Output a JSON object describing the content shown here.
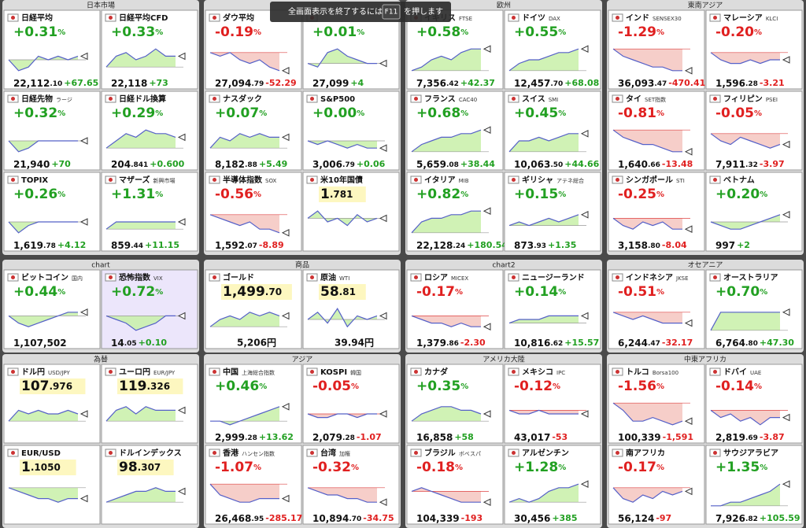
{
  "notice": {
    "before": "全画面表示を終了するには",
    "key": "F11",
    "after": "を押します"
  },
  "groups": [
    {
      "title": "日本市場",
      "tiles": [
        {
          "name": "日経平均",
          "pct": "+0.31%",
          "price": "22,112.10",
          "change": "+67.65",
          "spark": [
            5,
            2,
            3,
            6,
            5,
            6,
            5,
            6
          ]
        },
        {
          "name": "日経平均CFD",
          "pct": "+0.33%",
          "price": "22,118",
          "change": "+73",
          "spark": [
            3,
            6,
            7,
            5,
            6,
            8,
            6,
            6
          ]
        },
        {
          "name": "日経先物",
          "sub": "ラージ",
          "pct": "+0.32%",
          "price": "21,940",
          "change": "+70",
          "spark": [
            5,
            2,
            3,
            5,
            5,
            5,
            5,
            5
          ]
        },
        {
          "name": "日経ドル換算",
          "pct": "+0.29%",
          "price": "204.841",
          "change": "+0.600",
          "spark": [
            3,
            5,
            7,
            6,
            8,
            7,
            7,
            6
          ]
        },
        {
          "name": "TOPIX",
          "pct": "+0.26%",
          "price": "1,619.78",
          "change": "+4.12",
          "spark": [
            5,
            2,
            4,
            5,
            5,
            5,
            5,
            5
          ]
        },
        {
          "name": "マザーズ",
          "sub": "新興市場",
          "pct": "+1.31%",
          "price": "859.44",
          "change": "+11.15",
          "spark": [
            3,
            5,
            5,
            5,
            5,
            5,
            5,
            5
          ]
        }
      ]
    },
    {
      "tiles": [
        {
          "name": "ダウ平均",
          "pct": "-0.19%",
          "price": "27,094.79",
          "change": "-52.29",
          "spark": [
            7,
            6,
            7,
            5,
            4,
            5,
            3,
            2
          ]
        },
        {
          "pct": "+0.01%",
          "price": "27,099",
          "change": "+4",
          "spark": [
            4,
            3,
            7,
            8,
            6,
            5,
            4,
            4
          ]
        },
        {
          "name": "ナスダック",
          "pct": "+0.07%",
          "price": "8,182.88",
          "change": "+5.49",
          "spark": [
            3,
            6,
            5,
            7,
            6,
            7,
            6,
            6
          ]
        },
        {
          "name": "S&P500",
          "pct": "+0.00%",
          "price": "3,006.79",
          "change": "+0.06",
          "spark": [
            5,
            4,
            5,
            4,
            3,
            4,
            3,
            3
          ]
        },
        {
          "name": "半導体指数",
          "sub": "SOX",
          "pct": "-0.56%",
          "price": "1,592.07",
          "change": "-8.89",
          "spark": [
            7,
            6,
            5,
            4,
            5,
            3,
            3,
            2
          ]
        },
        {
          "name": "米10年国債",
          "price": "1.781",
          "spark": [
            6,
            8,
            5,
            6,
            4,
            7,
            5,
            6
          ]
        }
      ]
    },
    {
      "title": "欧州",
      "tiles": [
        {
          "name": "イギリス",
          "sub": "FTSE",
          "pct": "+0.58%",
          "price": "7,356.42",
          "change": "+42.37",
          "spark": [
            2,
            3,
            5,
            6,
            5,
            7,
            8,
            8
          ]
        },
        {
          "name": "ドイツ",
          "sub": "DAX",
          "pct": "+0.55%",
          "price": "12,457.70",
          "change": "+68.08",
          "spark": [
            2,
            4,
            5,
            5,
            6,
            7,
            7,
            8
          ]
        },
        {
          "name": "フランス",
          "sub": "CAC40",
          "pct": "+0.68%",
          "price": "5,659.08",
          "change": "+38.44",
          "spark": [
            2,
            4,
            5,
            6,
            6,
            7,
            7,
            8
          ]
        },
        {
          "name": "スイス",
          "sub": "SMI",
          "pct": "+0.45%",
          "price": "10,063.50",
          "change": "+44.66",
          "spark": [
            2,
            5,
            5,
            6,
            5,
            6,
            7,
            7
          ]
        },
        {
          "name": "イタリア",
          "sub": "MIB",
          "pct": "+0.82%",
          "price": "22,128.24",
          "change": "+180.54",
          "spark": [
            2,
            5,
            6,
            6,
            7,
            7,
            8,
            8
          ]
        },
        {
          "name": "ギリシャ",
          "sub": "アテネ総合",
          "pct": "+0.15%",
          "price": "873.93",
          "change": "+1.35",
          "spark": [
            4,
            5,
            4,
            5,
            6,
            5,
            6,
            7
          ]
        }
      ]
    },
    {
      "title": "東南アジア",
      "tiles": [
        {
          "name": "インド",
          "sub": "SENSEX30",
          "pct": "-1.29%",
          "price": "36,093.47",
          "change": "-470.41",
          "spark": [
            8,
            6,
            5,
            4,
            3,
            3,
            2,
            2
          ]
        },
        {
          "name": "マレーシア",
          "sub": "KLCI",
          "pct": "-0.20%",
          "price": "1,596.28",
          "change": "-3.21",
          "spark": [
            7,
            5,
            4,
            4,
            5,
            4,
            5,
            5
          ]
        },
        {
          "name": "タイ",
          "sub": "SET指数",
          "pct": "-0.81%",
          "price": "1,640.66",
          "change": "-13.48",
          "spark": [
            8,
            6,
            5,
            4,
            4,
            3,
            2,
            2
          ]
        },
        {
          "name": "フィリピン",
          "sub": "PSEI",
          "pct": "-0.05%",
          "price": "7,911.32",
          "change": "-3.97",
          "spark": [
            7,
            5,
            4,
            6,
            5,
            4,
            3,
            4
          ]
        },
        {
          "name": "シンガポール",
          "sub": "STI",
          "pct": "-0.25%",
          "price": "3,158.80",
          "change": "-8.04",
          "spark": [
            6,
            4,
            3,
            5,
            4,
            5,
            3,
            3
          ]
        },
        {
          "name": "ベトナム",
          "pct": "+0.20%",
          "price": "997",
          "change": "+2",
          "spark": [
            5,
            4,
            3,
            3,
            4,
            5,
            6,
            7
          ]
        }
      ]
    },
    {
      "title": "chart",
      "tiles": [
        {
          "name": "ビットコイン",
          "sub": "国内",
          "pct": "+0.44%",
          "price": "1,107,502",
          "spark": [
            6,
            4,
            3,
            4,
            5,
            6,
            7,
            7
          ]
        },
        {
          "name": "恐怖指数",
          "sub": "VIX",
          "pct": "+0.72%",
          "price": "14.05",
          "change": "+0.10",
          "spark": [
            6,
            5,
            4,
            2,
            3,
            4,
            6,
            6
          ]
        }
      ]
    },
    {
      "title": "商品",
      "tiles": [
        {
          "name": "ゴールド",
          "price": "1,499.70",
          "yen": "5,206円",
          "spark": [
            3,
            5,
            6,
            5,
            7,
            6,
            7,
            6
          ]
        },
        {
          "name": "原油",
          "sub": "WTI",
          "price": "58.81",
          "yen": "39.94円",
          "spark": [
            5,
            7,
            4,
            8,
            3,
            6,
            5,
            6
          ]
        }
      ]
    },
    {
      "title": "chart2",
      "tiles": [
        {
          "name": "ロシア",
          "sub": "MICEX",
          "pct": "-0.17%",
          "price": "1,379.86",
          "change": "-2.30",
          "spark": [
            6,
            5,
            4,
            4,
            3,
            4,
            3,
            3
          ]
        },
        {
          "name": "ニュージーランド",
          "pct": "+0.14%",
          "price": "10,816.62",
          "change": "+15.57",
          "spark": [
            4,
            5,
            5,
            5,
            6,
            6,
            6,
            6
          ]
        }
      ]
    },
    {
      "title": "オセアニア",
      "tiles": [
        {
          "name": "インドネシア",
          "sub": "JKSE",
          "pct": "-0.51%",
          "price": "6,244.47",
          "change": "-32.17",
          "spark": [
            7,
            6,
            5,
            6,
            5,
            4,
            4,
            4
          ]
        },
        {
          "name": "オーストラリア",
          "pct": "+0.70%",
          "price": "6,764.80",
          "change": "+47.30",
          "spark": [
            2,
            7,
            7,
            7,
            7,
            7,
            7,
            7
          ]
        }
      ]
    },
    {
      "title": "為替",
      "tiles": [
        {
          "name": "ドル円",
          "sub": "USD/JPY",
          "price": "107.976",
          "spark": [
            3,
            6,
            5,
            6,
            5,
            5,
            6,
            5
          ]
        },
        {
          "name": "ユーロ円",
          "sub": "EUR/JPY",
          "price": "119.326",
          "spark": [
            3,
            6,
            7,
            5,
            7,
            6,
            6,
            6
          ]
        },
        {
          "name": "EUR/USD",
          "price": "1.1050",
          "spark": [
            7,
            6,
            5,
            4,
            4,
            3,
            4,
            4
          ]
        },
        {
          "name": "ドルインデックス",
          "price": "98.307",
          "spark": [
            3,
            4,
            5,
            6,
            6,
            7,
            6,
            6
          ]
        }
      ]
    },
    {
      "title": "アジア",
      "tiles": [
        {
          "name": "中国",
          "sub": "上海総合指数",
          "pct": "+0.46%",
          "price": "2,999.28",
          "change": "+13.62",
          "spark": [
            3,
            3,
            2,
            3,
            4,
            5,
            6,
            7
          ]
        },
        {
          "name": "KOSPI",
          "sub": "韓国",
          "pct": "-0.05%",
          "price": "2,079.28",
          "change": "-1.07",
          "spark": [
            5,
            4,
            4,
            5,
            5,
            4,
            5,
            5
          ]
        },
        {
          "name": "香港",
          "sub": "ハンセン指数",
          "pct": "-1.07%",
          "price": "26,468.95",
          "change": "-285.17",
          "spark": [
            8,
            5,
            4,
            3,
            3,
            4,
            4,
            4
          ]
        },
        {
          "name": "台湾",
          "sub": "加権",
          "pct": "-0.32%",
          "price": "10,894.70",
          "change": "-34.75",
          "spark": [
            7,
            6,
            5,
            5,
            4,
            4,
            3,
            3
          ]
        }
      ]
    },
    {
      "title": "アメリカ大陸",
      "tiles": [
        {
          "name": "カナダ",
          "pct": "+0.35%",
          "price": "16,858",
          "change": "+58",
          "spark": [
            3,
            5,
            6,
            7,
            7,
            6,
            6,
            5
          ]
        },
        {
          "name": "メキシコ",
          "sub": "IPC",
          "pct": "-0.12%",
          "price": "43,017",
          "change": "-53",
          "spark": [
            6,
            5,
            5,
            6,
            5,
            5,
            5,
            5
          ]
        },
        {
          "name": "ブラジル",
          "sub": "ボベスパ",
          "pct": "-0.18%",
          "price": "104,339",
          "change": "-193",
          "spark": [
            6,
            7,
            6,
            5,
            4,
            3,
            3,
            3
          ]
        },
        {
          "name": "アルゼンチン",
          "pct": "+1.28%",
          "price": "30,456",
          "change": "+385",
          "spark": [
            3,
            4,
            3,
            4,
            6,
            7,
            7,
            8
          ]
        }
      ]
    },
    {
      "title": "中東アフリカ",
      "tiles": [
        {
          "name": "トルコ",
          "sub": "Borsa100",
          "pct": "-1.56%",
          "price": "100,339",
          "change": "-1,591",
          "spark": [
            8,
            6,
            3,
            3,
            4,
            3,
            2,
            3
          ]
        },
        {
          "name": "ドバイ",
          "sub": "UAE",
          "pct": "-0.14%",
          "price": "2,819.69",
          "change": "-3.87",
          "spark": [
            6,
            4,
            5,
            3,
            4,
            2,
            4,
            4
          ]
        },
        {
          "name": "南アフリカ",
          "pct": "-0.17%",
          "price": "56,124",
          "change": "-97",
          "spark": [
            7,
            4,
            3,
            5,
            4,
            6,
            5,
            6
          ]
        },
        {
          "name": "サウジアラビア",
          "pct": "+1.35%",
          "price": "7,926.82",
          "change": "+105.59",
          "spark": [
            2,
            2,
            3,
            3,
            4,
            5,
            6,
            8
          ]
        }
      ]
    }
  ]
}
